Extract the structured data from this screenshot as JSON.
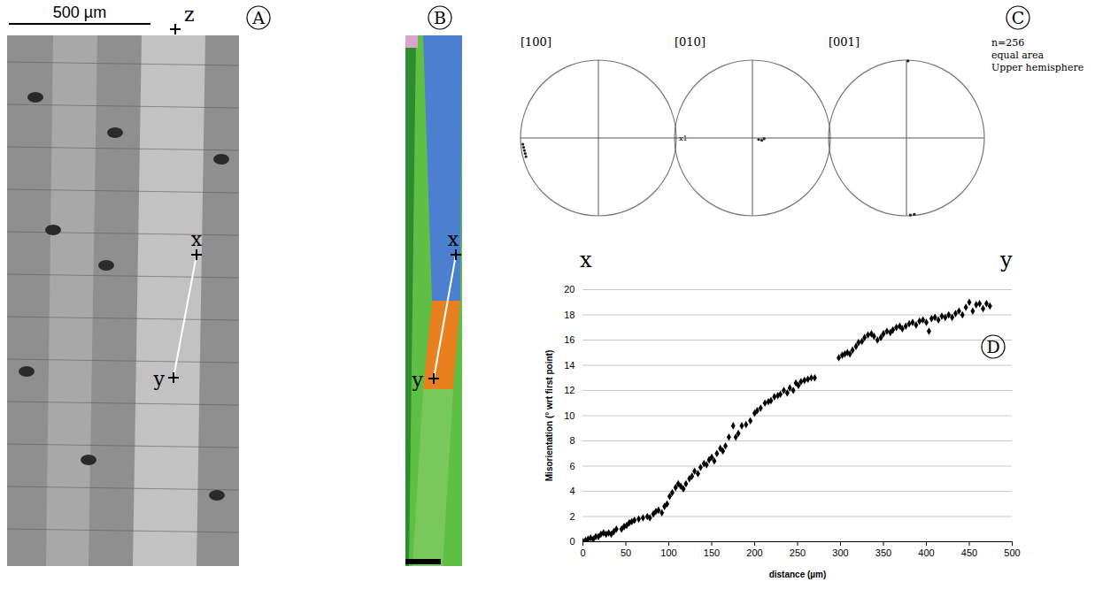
{
  "panel_letters": [
    "A",
    "B",
    "C",
    "D"
  ],
  "panels": {
    "A": {
      "scale_bar": "500 µm",
      "points": [
        "z",
        "x",
        "y"
      ]
    },
    "B": {
      "points": [
        "x",
        "y"
      ]
    },
    "C": {
      "pole_figures": [
        {
          "title": "[100]",
          "annotation": "x1",
          "points": [
            [
              -0.97,
              -0.08
            ],
            [
              -0.96,
              -0.12
            ],
            [
              -0.95,
              -0.16
            ],
            [
              -0.94,
              -0.2
            ],
            [
              -0.93,
              -0.24
            ]
          ]
        },
        {
          "title": "[010]",
          "points": [
            [
              0.08,
              -0.02
            ],
            [
              0.12,
              -0.03
            ],
            [
              0.15,
              -0.01
            ]
          ]
        },
        {
          "title": "[001]",
          "points": [
            [
              0.02,
              0.99
            ],
            [
              0.05,
              -0.99
            ],
            [
              0.1,
              -0.98
            ]
          ]
        }
      ],
      "notes": [
        "n=256",
        "equal area",
        "Upper hemisphere"
      ]
    }
  },
  "chart_data": {
    "type": "scatter",
    "annotations": [
      "x",
      "y"
    ],
    "x_label": "distance (µm)",
    "y_label": "Misorientation (° wrt first point)",
    "xlim": [
      0,
      500
    ],
    "xticks": [
      0,
      50,
      100,
      150,
      200,
      250,
      300,
      350,
      400,
      450,
      500
    ],
    "ylim": [
      0,
      20
    ],
    "yticks": [
      0,
      2,
      4,
      6,
      8,
      10,
      12,
      14,
      16,
      18,
      20
    ],
    "grid": true,
    "marker": "diamond",
    "color": "#000000",
    "x": [
      0,
      3,
      6,
      9,
      12,
      15,
      18,
      21,
      24,
      27,
      30,
      33,
      36,
      39,
      45,
      48,
      51,
      54,
      57,
      60,
      65,
      70,
      75,
      78,
      82,
      85,
      88,
      92,
      95,
      98,
      101,
      104,
      108,
      111,
      114,
      117,
      120,
      124,
      127,
      130,
      134,
      137,
      141,
      144,
      147,
      150,
      153,
      156,
      160,
      163,
      166,
      170,
      175,
      178,
      181,
      185,
      190,
      195,
      200,
      203,
      207,
      212,
      216,
      219,
      223,
      227,
      230,
      234,
      238,
      241,
      245,
      248,
      251,
      254,
      258,
      262,
      266,
      270,
      298,
      302,
      305,
      308,
      311,
      314,
      318,
      321,
      325,
      328,
      332,
      336,
      339,
      343,
      347,
      350,
      354,
      358,
      361,
      365,
      369,
      372,
      376,
      380,
      384,
      388,
      392,
      396,
      400,
      403,
      406,
      410,
      414,
      418,
      422,
      426,
      430,
      434,
      438,
      442,
      446,
      450,
      454,
      458,
      462,
      466,
      470,
      474
    ],
    "values": [
      0,
      0.1,
      0.2,
      0.3,
      0.2,
      0.4,
      0.4,
      0.6,
      0.7,
      0.6,
      0.7,
      0.6,
      0.8,
      1.0,
      1.0,
      1.2,
      1.3,
      1.5,
      1.6,
      1.7,
      1.8,
      1.9,
      2.0,
      1.9,
      2.2,
      2.4,
      2.5,
      2.3,
      2.8,
      3.0,
      3.6,
      3.9,
      4.3,
      4.6,
      4.4,
      4.2,
      4.6,
      5.0,
      5.2,
      5.6,
      5.4,
      5.9,
      6.2,
      6.1,
      6.5,
      6.7,
      6.4,
      7.0,
      7.4,
      7.2,
      7.6,
      8.3,
      9.2,
      8.3,
      8.6,
      9.2,
      9.3,
      9.6,
      10.2,
      10.4,
      10.6,
      11.0,
      11.1,
      11.2,
      11.5,
      11.6,
      11.7,
      12.0,
      11.8,
      12.2,
      12.0,
      12.6,
      12.4,
      12.7,
      12.8,
      12.9,
      13.0,
      13.0,
      14.6,
      14.8,
      14.9,
      15.0,
      14.9,
      15.2,
      15.5,
      15.8,
      15.9,
      16.2,
      16.4,
      16.5,
      16.3,
      16.0,
      16.2,
      16.5,
      16.7,
      16.6,
      16.8,
      17.0,
      17.1,
      16.9,
      17.1,
      17.3,
      17.4,
      17.2,
      17.5,
      17.6,
      17.4,
      16.7,
      17.7,
      17.8,
      17.6,
      17.9,
      17.8,
      18.0,
      17.8,
      18.1,
      18.3,
      18.0,
      18.6,
      19.0,
      18.3,
      18.8,
      18.9,
      18.5,
      18.9,
      18.7
    ]
  }
}
